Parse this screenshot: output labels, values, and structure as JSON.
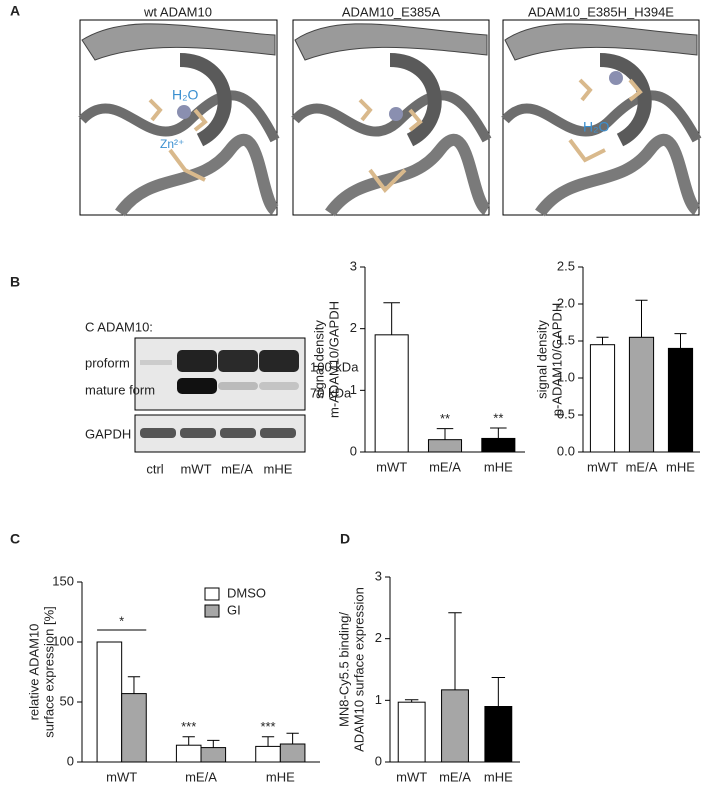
{
  "panel_labels": [
    "A",
    "B",
    "C",
    "D"
  ],
  "structures": [
    {
      "title": "wt ADAM10",
      "labels": [
        "H₂O",
        "Zn²⁺"
      ]
    },
    {
      "title": "ADAM10_E385A"
    },
    {
      "title": "ADAM10_E385H_H394E",
      "labels": [
        "H₂O"
      ]
    }
  ],
  "blot": {
    "title": "C ADAM10:",
    "row_labels": [
      "proform",
      "mature form",
      "GAPDH"
    ],
    "markers": [
      "100 kDa",
      "70 kDa"
    ],
    "lanes": [
      "ctrl",
      "mWT",
      "mE/A",
      "mHE"
    ]
  },
  "chart_data": [
    {
      "type": "bar",
      "y_label": [
        "signal density",
        "m-ADAM10/GAPDH"
      ],
      "categories": [
        "mWT",
        "mE/A",
        "mHE"
      ],
      "values": [
        1.9,
        0.2,
        0.22
      ],
      "errors": [
        0.52,
        0.18,
        0.17
      ],
      "colors": [
        "#ffffff",
        "#a6a6a6",
        "#000000"
      ],
      "significance": [
        null,
        "**",
        "**"
      ],
      "ylim": [
        0,
        3
      ],
      "yticks": [
        0,
        1,
        2,
        3
      ]
    },
    {
      "type": "bar",
      "y_label": [
        "signal density",
        "p-ADAM10/GAPDH"
      ],
      "categories": [
        "mWT",
        "mE/A",
        "mHE"
      ],
      "values": [
        1.45,
        1.55,
        1.4
      ],
      "errors": [
        0.1,
        0.5,
        0.2
      ],
      "colors": [
        "#ffffff",
        "#a6a6a6",
        "#000000"
      ],
      "ylim": [
        0,
        2.5
      ],
      "yticks": [
        {
          "value": 0,
          "label": "0.0"
        },
        0.5,
        {
          "value": 1,
          "label": "1.0"
        },
        1.5,
        {
          "value": 2,
          "label": "2.0"
        },
        2.5
      ]
    },
    {
      "type": "bar",
      "y_label": [
        "relative ADAM10",
        "surface expression [%]"
      ],
      "categories": [
        "mWT",
        "mE/A",
        "mHE"
      ],
      "series": [
        {
          "name": "DMSO",
          "color": "#ffffff",
          "values": [
            100,
            14,
            13
          ],
          "errors": [
            0,
            7,
            8
          ],
          "significance": [
            null,
            "***",
            "***"
          ]
        },
        {
          "name": "GI",
          "color": "#a6a6a6",
          "values": [
            57,
            12,
            15
          ],
          "errors": [
            14,
            6,
            9
          ]
        }
      ],
      "group_significance": [
        "*",
        null,
        null
      ],
      "legend": "upper right",
      "ylim": [
        0,
        150
      ],
      "yticks": [
        0,
        50,
        100,
        150
      ]
    },
    {
      "type": "bar",
      "y_label": [
        "MN8-Cy5.5 binding/",
        "ADAM10 surface expression"
      ],
      "categories": [
        "mWT",
        "mE/A",
        "mHE"
      ],
      "values": [
        0.97,
        1.17,
        0.9
      ],
      "errors": [
        0.04,
        1.25,
        0.47
      ],
      "colors": [
        "#ffffff",
        "#a6a6a6",
        "#000000"
      ],
      "ylim": [
        0,
        3
      ],
      "yticks": [
        0,
        1,
        2,
        3
      ]
    }
  ]
}
